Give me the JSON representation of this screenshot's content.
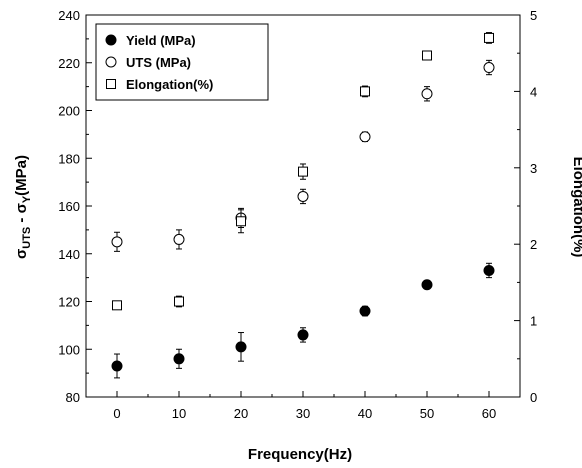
{
  "chart_data": {
    "type": "scatter",
    "x": [
      0,
      10,
      20,
      30,
      40,
      50,
      60
    ],
    "xlabel": "Frequency(Hz)",
    "ylabel": {
      "main": "σ",
      "sub1": "UTS",
      "mid": " - σ",
      "sub2": "Y",
      "end": "(MPa)"
    },
    "y2label": "Elongation(%)",
    "xlim": [
      -5,
      65
    ],
    "ylim": [
      80,
      240
    ],
    "y2lim": [
      0,
      5
    ],
    "xticks": [
      "0",
      "10",
      "20",
      "30",
      "40",
      "50",
      "60"
    ],
    "yticks": [
      "80",
      "100",
      "120",
      "140",
      "160",
      "180",
      "200",
      "220",
      "240"
    ],
    "y2ticks": [
      "0",
      "1",
      "2",
      "3",
      "4",
      "5"
    ],
    "legend_position": "top-left",
    "grid": false,
    "series": [
      {
        "name": "Yield (MPa)",
        "marker": "filled-circle",
        "axis": "left",
        "values": [
          93,
          96,
          101,
          106,
          116,
          127,
          133
        ],
        "errors": [
          5,
          4,
          6,
          3,
          2,
          1,
          3
        ]
      },
      {
        "name": "UTS (MPa)",
        "marker": "open-circle",
        "axis": "left",
        "values": [
          145,
          146,
          155,
          164,
          189,
          207,
          218
        ],
        "errors": [
          4,
          4,
          4,
          3,
          2,
          3,
          3
        ]
      },
      {
        "name": "Elongation(%)",
        "marker": "open-square",
        "axis": "right",
        "values": [
          1.2,
          1.25,
          2.3,
          2.95,
          4.0,
          4.47,
          4.7
        ],
        "errors": [
          0.05,
          0.07,
          0.15,
          0.1,
          0.07,
          0.03,
          0.07
        ]
      }
    ]
  }
}
